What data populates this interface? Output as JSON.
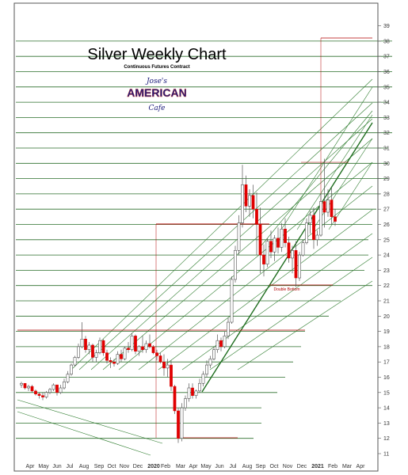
{
  "chart_data": {
    "type": "candlestick",
    "title": "Silver Weekly Chart",
    "subtitle": "Continuous Futures Contract",
    "annotations": [
      "Double Bottom"
    ],
    "logo": {
      "line1": "Jose's",
      "line2": "AMERICAN",
      "line3": "Cafe"
    },
    "y_axis": {
      "min": 11,
      "max": 39,
      "ticks": [
        11,
        12,
        13,
        14,
        15,
        16,
        17,
        18,
        19,
        20,
        21,
        22,
        23,
        24,
        25,
        26,
        27,
        28,
        29,
        30,
        31,
        32,
        33,
        34,
        35,
        36,
        37,
        38,
        39
      ],
      "position": "right"
    },
    "x_axis": {
      "labels": [
        "Apr",
        "May",
        "Jun",
        "Jul",
        "Aug",
        "Sep",
        "Oct",
        "Nov",
        "Dec",
        "2020",
        "Feb",
        "Mar",
        "Apr",
        "May",
        "Jun",
        "Jul",
        "Aug",
        "Sep",
        "Oct",
        "Nov",
        "Dec",
        "2021",
        "Feb",
        "Mar",
        "Apr"
      ]
    },
    "grid_level_lines": [
      12,
      13,
      14,
      15,
      16,
      17,
      18,
      19,
      20,
      21,
      22,
      23,
      24,
      25,
      26,
      27,
      28,
      29,
      30,
      31,
      32,
      33,
      34,
      35,
      36,
      37,
      38
    ],
    "series": [
      {
        "values": [
          [
            15.5,
            15.7,
            15.3,
            15.6
          ],
          [
            15.6,
            15.6,
            15.2,
            15.3
          ],
          [
            15.3,
            15.5,
            15.1,
            15.4
          ],
          [
            15.4,
            15.5,
            15.0,
            15.1
          ],
          [
            15.1,
            15.2,
            14.8,
            14.9
          ],
          [
            14.9,
            15.0,
            14.6,
            14.8
          ],
          [
            14.8,
            15.0,
            14.5,
            14.7
          ],
          [
            14.7,
            15.1,
            14.6,
            15.0
          ],
          [
            15.0,
            15.3,
            14.9,
            15.2
          ],
          [
            15.2,
            15.6,
            15.1,
            15.5
          ],
          [
            15.5,
            15.4,
            14.8,
            15.0
          ],
          [
            15.0,
            15.5,
            14.9,
            15.3
          ],
          [
            15.3,
            15.9,
            15.2,
            15.7
          ],
          [
            15.7,
            16.4,
            15.6,
            16.2
          ],
          [
            16.2,
            16.9,
            16.1,
            16.8
          ],
          [
            16.8,
            17.4,
            16.7,
            17.3
          ],
          [
            17.3,
            18.2,
            17.2,
            18.0
          ],
          [
            18.0,
            19.6,
            17.9,
            18.5
          ],
          [
            18.5,
            18.7,
            17.6,
            17.8
          ],
          [
            17.8,
            18.3,
            17.5,
            18.1
          ],
          [
            18.1,
            18.2,
            17.0,
            17.3
          ],
          [
            17.3,
            17.8,
            17.0,
            17.6
          ],
          [
            17.6,
            18.6,
            17.5,
            18.4
          ],
          [
            18.4,
            18.5,
            17.4,
            17.6
          ],
          [
            17.6,
            17.8,
            16.9,
            17.1
          ],
          [
            17.1,
            17.3,
            16.6,
            17.0
          ],
          [
            17.0,
            17.2,
            16.7,
            16.9
          ],
          [
            16.9,
            17.7,
            16.8,
            17.5
          ],
          [
            17.5,
            17.8,
            17.0,
            17.2
          ],
          [
            17.2,
            18.0,
            17.1,
            17.9
          ],
          [
            17.9,
            18.3,
            17.6,
            17.8
          ],
          [
            17.8,
            18.9,
            17.7,
            18.7
          ],
          [
            18.7,
            18.8,
            17.5,
            17.7
          ],
          [
            17.7,
            18.1,
            17.4,
            18.0
          ],
          [
            18.0,
            18.7,
            17.6,
            17.8
          ],
          [
            17.8,
            18.4,
            17.6,
            18.2
          ],
          [
            18.2,
            18.8,
            17.9,
            18.0
          ],
          [
            18.0,
            18.1,
            17.5,
            17.6
          ],
          [
            17.6,
            17.8,
            17.1,
            17.4
          ],
          [
            17.4,
            17.6,
            16.9,
            17.0
          ],
          [
            17.0,
            17.5,
            16.1,
            16.6
          ],
          [
            16.6,
            17.2,
            16.0,
            16.8
          ],
          [
            16.8,
            17.1,
            15.1,
            15.4
          ],
          [
            15.4,
            15.5,
            13.6,
            13.8
          ],
          [
            13.8,
            14.0,
            11.7,
            12.0
          ],
          [
            12.0,
            14.3,
            11.8,
            14.0
          ],
          [
            14.0,
            14.8,
            13.8,
            14.6
          ],
          [
            14.6,
            15.6,
            14.4,
            15.3
          ],
          [
            15.3,
            15.6,
            14.6,
            14.8
          ],
          [
            14.8,
            15.2,
            14.6,
            15.1
          ],
          [
            15.1,
            15.9,
            15.0,
            15.6
          ],
          [
            15.6,
            16.4,
            15.4,
            16.2
          ],
          [
            16.2,
            17.1,
            16.0,
            16.8
          ],
          [
            16.8,
            17.4,
            16.6,
            17.2
          ],
          [
            17.2,
            18.0,
            17.1,
            17.8
          ],
          [
            17.8,
            18.8,
            17.6,
            18.4
          ],
          [
            18.4,
            18.6,
            17.7,
            18.0
          ],
          [
            18.0,
            19.0,
            17.9,
            18.7
          ],
          [
            18.7,
            19.9,
            18.5,
            19.6
          ],
          [
            19.6,
            22.6,
            19.5,
            22.4
          ],
          [
            22.4,
            24.6,
            22.2,
            24.3
          ],
          [
            24.3,
            26.6,
            24.0,
            26.1
          ],
          [
            26.1,
            29.9,
            25.8,
            28.6
          ],
          [
            28.6,
            29.2,
            26.8,
            27.2
          ],
          [
            27.2,
            28.3,
            26.5,
            27.9
          ],
          [
            27.9,
            28.6,
            26.4,
            27.0
          ],
          [
            27.0,
            28.1,
            24.0,
            26.0
          ],
          [
            26.0,
            27.1,
            22.8,
            24.0
          ],
          [
            24.0,
            24.7,
            22.6,
            23.4
          ],
          [
            23.4,
            25.1,
            23.2,
            24.9
          ],
          [
            24.9,
            25.6,
            23.8,
            24.2
          ],
          [
            24.2,
            25.3,
            23.6,
            25.1
          ],
          [
            25.1,
            25.8,
            24.1,
            24.5
          ],
          [
            24.5,
            26.1,
            24.2,
            25.7
          ],
          [
            25.7,
            26.4,
            24.5,
            24.8
          ],
          [
            24.8,
            25.2,
            23.5,
            23.8
          ],
          [
            23.8,
            24.6,
            22.8,
            24.3
          ],
          [
            24.3,
            24.9,
            21.9,
            22.5
          ],
          [
            22.5,
            24.2,
            22.3,
            24.0
          ],
          [
            24.0,
            25.0,
            23.9,
            24.8
          ],
          [
            24.8,
            26.4,
            24.7,
            26.1
          ],
          [
            26.1,
            26.9,
            25.4,
            26.6
          ],
          [
            26.6,
            27.1,
            24.4,
            25.0
          ],
          [
            25.0,
            25.6,
            24.6,
            25.3
          ],
          [
            25.3,
            28.0,
            25.2,
            27.5
          ],
          [
            27.5,
            30.3,
            25.8,
            26.8
          ],
          [
            26.8,
            28.3,
            26.5,
            27.6
          ],
          [
            27.6,
            28.4,
            26.0,
            26.5
          ],
          [
            26.5,
            27.0,
            25.9,
            26.2
          ]
        ]
      }
    ],
    "colors": {
      "up": "#ffffff",
      "down": "#e00000",
      "wick": "#555555",
      "level": "#2a6e2a",
      "fan": "#2f7d2f",
      "accent": "#b00000",
      "title": "#000000",
      "logo": "#1a1a7a"
    }
  }
}
